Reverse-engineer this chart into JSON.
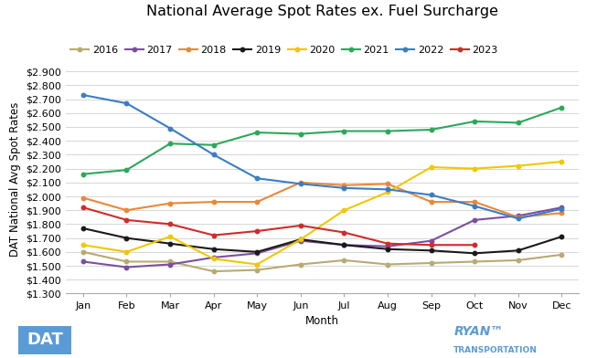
{
  "title": "National Average Spot Rates ex. Fuel Surcharge",
  "xlabel": "Month",
  "ylabel": "DAT National Avg Spot Rates",
  "months": [
    "Jan",
    "Feb",
    "Mar",
    "Apr",
    "May",
    "Jun",
    "Jul",
    "Aug",
    "Sep",
    "Oct",
    "Nov",
    "Dec"
  ],
  "ylim": [
    1.3,
    2.95
  ],
  "ytick_vals": [
    1.3,
    1.4,
    1.5,
    1.6,
    1.7,
    1.8,
    1.9,
    2.0,
    2.1,
    2.2,
    2.3,
    2.4,
    2.5,
    2.6,
    2.7,
    2.8,
    2.9
  ],
  "series": [
    {
      "label": "2016",
      "color": "#b8aa72",
      "data": [
        1.6,
        1.53,
        1.53,
        1.46,
        1.47,
        1.51,
        1.54,
        1.51,
        1.52,
        1.53,
        1.54,
        1.58
      ]
    },
    {
      "label": "2017",
      "color": "#7b4f9e",
      "data": [
        1.53,
        1.49,
        1.51,
        1.56,
        1.59,
        1.68,
        1.65,
        1.64,
        1.68,
        1.83,
        1.86,
        1.92
      ]
    },
    {
      "label": "2018",
      "color": "#e8893a",
      "data": [
        1.99,
        1.9,
        1.95,
        1.96,
        1.96,
        2.1,
        2.08,
        2.09,
        1.96,
        1.96,
        1.85,
        1.88
      ]
    },
    {
      "label": "2019",
      "color": "#1a1a1a",
      "data": [
        1.77,
        1.7,
        1.66,
        1.62,
        1.6,
        1.69,
        1.65,
        1.62,
        1.61,
        1.59,
        1.61,
        1.71
      ]
    },
    {
      "label": "2020",
      "color": "#f0c700",
      "data": [
        1.65,
        1.6,
        1.71,
        1.55,
        1.51,
        1.69,
        1.9,
        2.03,
        2.21,
        2.2,
        2.22,
        2.25
      ]
    },
    {
      "label": "2021",
      "color": "#2ca85a",
      "data": [
        2.16,
        2.19,
        2.38,
        2.37,
        2.46,
        2.45,
        2.47,
        2.47,
        2.48,
        2.54,
        2.53,
        2.64
      ]
    },
    {
      "label": "2022",
      "color": "#3b7dc4",
      "data": [
        2.73,
        2.67,
        2.49,
        2.3,
        2.13,
        2.09,
        2.06,
        2.05,
        2.01,
        1.93,
        1.84,
        1.91
      ]
    },
    {
      "label": "2023",
      "color": "#d12b2b",
      "data": [
        1.92,
        1.83,
        1.8,
        1.72,
        1.75,
        1.79,
        1.74,
        1.66,
        1.65,
        1.65,
        null,
        null
      ]
    }
  ],
  "background_color": "#ffffff",
  "grid_color": "#d0d0d0",
  "title_fontsize": 11.5,
  "axis_label_fontsize": 8.5,
  "tick_fontsize": 8,
  "legend_fontsize": 8,
  "dat_logo_color": "#5b9bd5",
  "ryan_logo_color": "#5b9bd5"
}
